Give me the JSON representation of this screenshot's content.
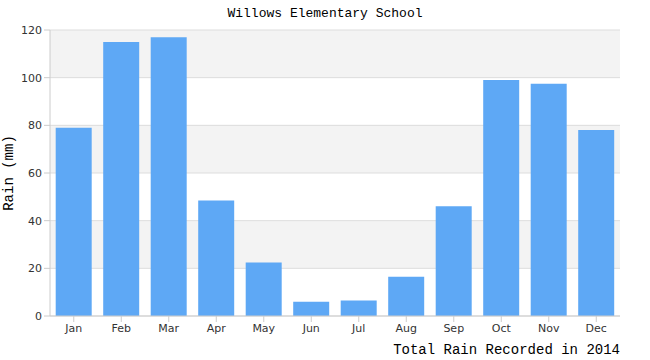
{
  "chart_data": {
    "type": "bar",
    "title": "Willows Elementary School",
    "subtitle": "Total Rain Recorded in 2014",
    "y_label": "Rain (mm)",
    "categories": [
      "Jan",
      "Feb",
      "Mar",
      "Apr",
      "May",
      "Jun",
      "Jul",
      "Aug",
      "Sep",
      "Oct",
      "Nov",
      "Dec"
    ],
    "values": [
      79,
      115,
      117,
      48.5,
      22.5,
      6,
      6.5,
      16.5,
      46,
      99,
      97.5,
      78
    ],
    "color": "#5ea8f5",
    "ylim": [
      0,
      120
    ],
    "yticks": [
      0,
      20,
      40,
      60,
      80,
      100,
      120
    ],
    "grid": true
  }
}
